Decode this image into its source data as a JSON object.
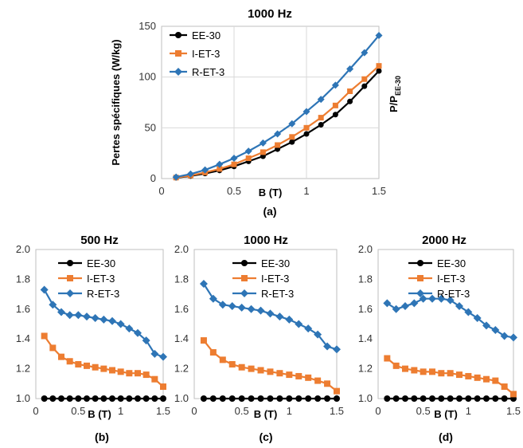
{
  "colors": {
    "EE-30": "#000000",
    "I-ET-3": "#ED7D31",
    "R-ET-3": "#2E75B6"
  },
  "chart_data": [
    {
      "id": "a",
      "type": "line",
      "title": "1000 Hz",
      "panel_label": "(a)",
      "xlabel": "B (T)",
      "ylabel": "Pertes spécifiques (W/kg)",
      "xlim": [
        0,
        1.5
      ],
      "ylim": [
        0,
        150
      ],
      "xticks": [
        "0",
        "0.5",
        "1",
        "1.5"
      ],
      "yticks": [
        "0",
        "50",
        "100",
        "150"
      ],
      "grid": true,
      "legend": "top-left",
      "x": [
        0.1,
        0.2,
        0.3,
        0.4,
        0.5,
        0.6,
        0.7,
        0.8,
        0.9,
        1.0,
        1.1,
        1.2,
        1.3,
        1.4,
        1.5
      ],
      "series": [
        {
          "name": "EE-30",
          "marker": "circle",
          "values": [
            0.8,
            2.5,
            5,
            8,
            12,
            17,
            22,
            29,
            36,
            44,
            53,
            63,
            76,
            91,
            106
          ]
        },
        {
          "name": "I-ET-3",
          "marker": "square",
          "values": [
            1,
            3,
            6,
            9.5,
            14,
            20,
            26,
            33,
            41,
            50,
            60,
            72,
            86,
            98,
            111
          ]
        },
        {
          "name": "R-ET-3",
          "marker": "diamond",
          "values": [
            1.5,
            4.5,
            8.5,
            14,
            20,
            27,
            35,
            44,
            54,
            66,
            78,
            92,
            108,
            124,
            141
          ]
        }
      ]
    },
    {
      "id": "b",
      "type": "line",
      "title": "500 Hz",
      "panel_label": "(b)",
      "xlabel": "B (T)",
      "ylabel": "P/PEE-30",
      "xlim": [
        0,
        1.5
      ],
      "ylim": [
        1.0,
        2.0
      ],
      "xticks": [
        "0",
        "0.5",
        "1",
        "1.5"
      ],
      "yticks": [
        "1.0",
        "1.2",
        "1.4",
        "1.6",
        "1.8",
        "2.0"
      ],
      "grid": false,
      "legend": "top-right",
      "x": [
        0.1,
        0.2,
        0.3,
        0.4,
        0.5,
        0.6,
        0.7,
        0.8,
        0.9,
        1.0,
        1.1,
        1.2,
        1.3,
        1.4,
        1.5
      ],
      "series": [
        {
          "name": "EE-30",
          "marker": "circle",
          "values": [
            1,
            1,
            1,
            1,
            1,
            1,
            1,
            1,
            1,
            1,
            1,
            1,
            1,
            1,
            1
          ]
        },
        {
          "name": "I-ET-3",
          "marker": "square",
          "values": [
            1.42,
            1.34,
            1.28,
            1.25,
            1.23,
            1.22,
            1.21,
            1.2,
            1.19,
            1.18,
            1.17,
            1.17,
            1.16,
            1.13,
            1.08
          ]
        },
        {
          "name": "R-ET-3",
          "marker": "diamond",
          "values": [
            1.73,
            1.63,
            1.58,
            1.56,
            1.56,
            1.55,
            1.54,
            1.53,
            1.52,
            1.5,
            1.47,
            1.44,
            1.39,
            1.3,
            1.28
          ]
        }
      ]
    },
    {
      "id": "c",
      "type": "line",
      "title": "1000 Hz",
      "panel_label": "(c)",
      "xlabel": "B (T)",
      "ylabel": "",
      "xlim": [
        0,
        1.5
      ],
      "ylim": [
        1.0,
        2.0
      ],
      "xticks": [
        "0",
        "0.5",
        "1",
        "1.5"
      ],
      "yticks": [
        "1.0",
        "1.2",
        "1.4",
        "1.6",
        "1.8",
        "2.0"
      ],
      "grid": false,
      "legend": "top-right",
      "x": [
        0.1,
        0.2,
        0.3,
        0.4,
        0.5,
        0.6,
        0.7,
        0.8,
        0.9,
        1.0,
        1.1,
        1.2,
        1.3,
        1.4,
        1.5
      ],
      "series": [
        {
          "name": "EE-30",
          "marker": "circle",
          "values": [
            1,
            1,
            1,
            1,
            1,
            1,
            1,
            1,
            1,
            1,
            1,
            1,
            1,
            1,
            1
          ]
        },
        {
          "name": "I-ET-3",
          "marker": "square",
          "values": [
            1.39,
            1.31,
            1.26,
            1.23,
            1.21,
            1.2,
            1.19,
            1.18,
            1.17,
            1.16,
            1.15,
            1.14,
            1.12,
            1.1,
            1.05
          ]
        },
        {
          "name": "R-ET-3",
          "marker": "diamond",
          "values": [
            1.77,
            1.67,
            1.63,
            1.62,
            1.61,
            1.6,
            1.59,
            1.57,
            1.55,
            1.53,
            1.5,
            1.47,
            1.43,
            1.35,
            1.33
          ]
        }
      ]
    },
    {
      "id": "d",
      "type": "line",
      "title": "2000 Hz",
      "panel_label": "(d)",
      "xlabel": "B (T)",
      "ylabel": "",
      "xlim": [
        0,
        1.5
      ],
      "ylim": [
        1.0,
        2.0
      ],
      "xticks": [
        "0",
        "0.5",
        "1",
        "1.5"
      ],
      "yticks": [
        "1.0",
        "1.2",
        "1.4",
        "1.6",
        "1.8",
        "2.0"
      ],
      "grid": false,
      "legend": "top-right",
      "x": [
        0.1,
        0.2,
        0.3,
        0.4,
        0.5,
        0.6,
        0.7,
        0.8,
        0.9,
        1.0,
        1.1,
        1.2,
        1.3,
        1.4,
        1.5
      ],
      "series": [
        {
          "name": "EE-30",
          "marker": "circle",
          "values": [
            1,
            1,
            1,
            1,
            1,
            1,
            1,
            1,
            1,
            1,
            1,
            1,
            1,
            1,
            1
          ]
        },
        {
          "name": "I-ET-3",
          "marker": "square",
          "values": [
            1.27,
            1.22,
            1.2,
            1.19,
            1.18,
            1.18,
            1.17,
            1.17,
            1.16,
            1.15,
            1.14,
            1.13,
            1.12,
            1.08,
            1.03
          ]
        },
        {
          "name": "R-ET-3",
          "marker": "diamond",
          "values": [
            1.64,
            1.6,
            1.62,
            1.64,
            1.67,
            1.67,
            1.67,
            1.66,
            1.62,
            1.58,
            1.54,
            1.49,
            1.46,
            1.42,
            1.41
          ]
        }
      ]
    }
  ]
}
